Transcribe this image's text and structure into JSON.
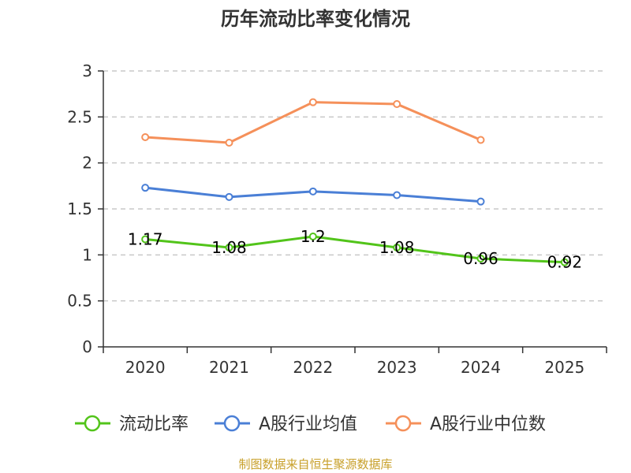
{
  "chart_data": {
    "type": "line",
    "title": "历年流动比率变化情况",
    "categories": [
      "2020",
      "2021",
      "2022",
      "2023",
      "2024",
      "2025"
    ],
    "ylim": [
      0,
      3
    ],
    "yticks": [
      "0",
      "0.5",
      "1",
      "1.5",
      "2",
      "2.5",
      "3"
    ],
    "grid": true,
    "legend_position": "bottom",
    "series": [
      {
        "name": "流动比率",
        "color": "#52c41a",
        "values": [
          1.17,
          1.08,
          1.2,
          1.08,
          0.96,
          0.92
        ],
        "labels": [
          "1.17",
          "1.08",
          "1.2",
          "1.08",
          "0.96",
          "0.92"
        ]
      },
      {
        "name": "A股行业均值",
        "color": "#4a7fd6",
        "values": [
          1.73,
          1.63,
          1.69,
          1.65,
          1.58,
          null
        ]
      },
      {
        "name": "A股行业中位数",
        "color": "#f5905a",
        "values": [
          2.28,
          2.22,
          2.66,
          2.64,
          2.25,
          null
        ]
      }
    ],
    "source": "制图数据来自恒生聚源数据库"
  }
}
